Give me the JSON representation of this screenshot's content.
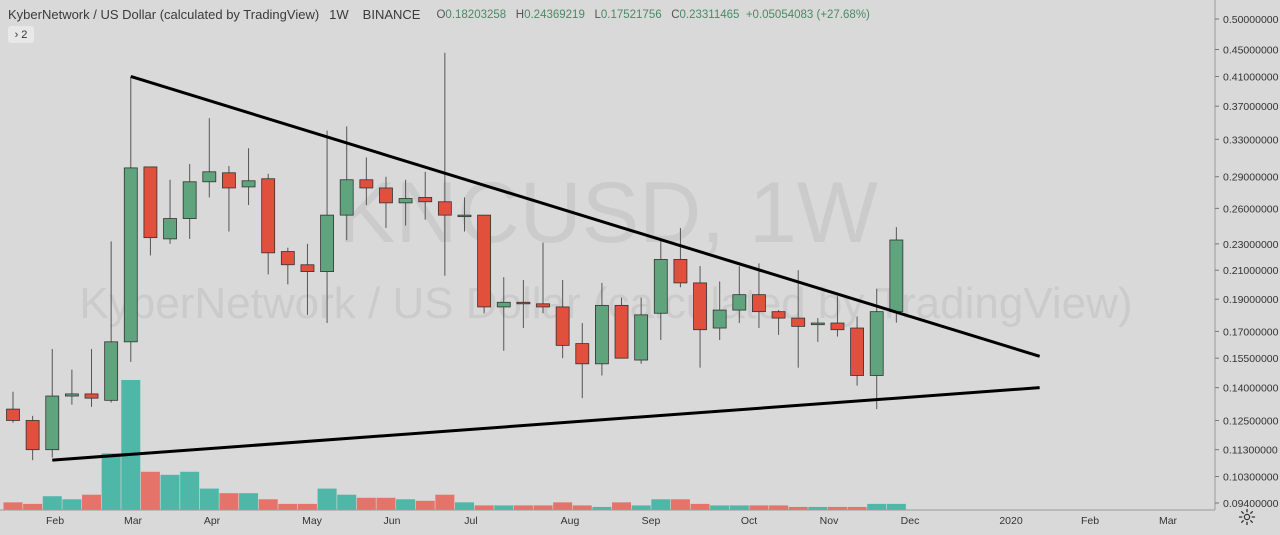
{
  "header": {
    "symbol": "KyberNetwork / US Dollar (calculated by TradingView)",
    "timeframe": "1W",
    "exchange": "BINANCE",
    "o_label": "O",
    "o_value": "0.18203258",
    "h_label": "H",
    "h_value": "0.24369219",
    "l_label": "L",
    "l_value": "0.17521756",
    "c_label": "C",
    "c_value": "0.23311465",
    "change": "+0.05054083 (+27.68%)"
  },
  "study_toggle": {
    "label": "2",
    "icon": "chevron-right-icon"
  },
  "watermark": {
    "line1": "KNCUSD, 1W",
    "line2": "KyberNetwork / US Dollar (calculated by TradingView)"
  },
  "colors": {
    "up": "#5fa47c",
    "down": "#e0503c",
    "vol_up": "#4fb7a8",
    "vol_down": "#e6736a",
    "background": "#d9d9d9",
    "trendline": "#000000"
  },
  "settings_icon": "gear-icon",
  "chart_data": {
    "type": "candlestick",
    "title": "KyberNetwork / US Dollar (calculated by TradingView)",
    "interval": "1W",
    "price_axis": {
      "labels": [
        "0.50000000",
        "0.45000000",
        "0.41000000",
        "0.37000000",
        "0.33000000",
        "0.29000000",
        "0.26000000",
        "0.23000000",
        "0.21000000",
        "0.19000000",
        "0.17000000",
        "0.15500000",
        "0.14000000",
        "0.12500000",
        "0.11300000",
        "0.10300000",
        "0.09400000"
      ],
      "values": [
        0.5,
        0.45,
        0.41,
        0.37,
        0.33,
        0.29,
        0.26,
        0.23,
        0.21,
        0.19,
        0.17,
        0.155,
        0.14,
        0.125,
        0.113,
        0.103,
        0.094
      ],
      "scale": "log",
      "ylim": [
        0.09,
        0.52
      ],
      "position": "right"
    },
    "time_axis": {
      "labels": [
        "Feb",
        "Mar",
        "Apr",
        "May",
        "Jun",
        "Jul",
        "Aug",
        "Sep",
        "Oct",
        "Nov",
        "Dec",
        "2020",
        "Feb",
        "Mar"
      ]
    },
    "candles": [
      {
        "o": 0.13,
        "h": 0.138,
        "l": 0.124,
        "c": 0.125
      },
      {
        "o": 0.125,
        "h": 0.127,
        "l": 0.109,
        "c": 0.113
      },
      {
        "o": 0.113,
        "h": 0.16,
        "l": 0.11,
        "c": 0.136
      },
      {
        "o": 0.136,
        "h": 0.149,
        "l": 0.132,
        "c": 0.137
      },
      {
        "o": 0.137,
        "h": 0.16,
        "l": 0.131,
        "c": 0.135
      },
      {
        "o": 0.134,
        "h": 0.232,
        "l": 0.133,
        "c": 0.164
      },
      {
        "o": 0.164,
        "h": 0.41,
        "l": 0.153,
        "c": 0.299
      },
      {
        "o": 0.3,
        "h": 0.3,
        "l": 0.221,
        "c": 0.235
      },
      {
        "o": 0.234,
        "h": 0.287,
        "l": 0.23,
        "c": 0.251
      },
      {
        "o": 0.251,
        "h": 0.303,
        "l": 0.234,
        "c": 0.285
      },
      {
        "o": 0.285,
        "h": 0.355,
        "l": 0.27,
        "c": 0.295
      },
      {
        "o": 0.294,
        "h": 0.301,
        "l": 0.24,
        "c": 0.279
      },
      {
        "o": 0.28,
        "h": 0.32,
        "l": 0.263,
        "c": 0.286
      },
      {
        "o": 0.288,
        "h": 0.293,
        "l": 0.207,
        "c": 0.223
      },
      {
        "o": 0.224,
        "h": 0.227,
        "l": 0.2,
        "c": 0.214
      },
      {
        "o": 0.214,
        "h": 0.23,
        "l": 0.18,
        "c": 0.209
      },
      {
        "o": 0.209,
        "h": 0.34,
        "l": 0.175,
        "c": 0.254
      },
      {
        "o": 0.254,
        "h": 0.345,
        "l": 0.233,
        "c": 0.287
      },
      {
        "o": 0.287,
        "h": 0.31,
        "l": 0.263,
        "c": 0.279
      },
      {
        "o": 0.279,
        "h": 0.29,
        "l": 0.243,
        "c": 0.265
      },
      {
        "o": 0.265,
        "h": 0.287,
        "l": 0.245,
        "c": 0.269
      },
      {
        "o": 0.27,
        "h": 0.295,
        "l": 0.25,
        "c": 0.266
      },
      {
        "o": 0.266,
        "h": 0.445,
        "l": 0.206,
        "c": 0.254
      },
      {
        "o": 0.253,
        "h": 0.27,
        "l": 0.24,
        "c": 0.254
      },
      {
        "o": 0.254,
        "h": 0.254,
        "l": 0.181,
        "c": 0.185
      },
      {
        "o": 0.185,
        "h": 0.205,
        "l": 0.159,
        "c": 0.188
      },
      {
        "o": 0.188,
        "h": 0.203,
        "l": 0.172,
        "c": 0.187
      },
      {
        "o": 0.187,
        "h": 0.231,
        "l": 0.181,
        "c": 0.185
      },
      {
        "o": 0.185,
        "h": 0.203,
        "l": 0.155,
        "c": 0.162
      },
      {
        "o": 0.163,
        "h": 0.175,
        "l": 0.135,
        "c": 0.152
      },
      {
        "o": 0.152,
        "h": 0.201,
        "l": 0.146,
        "c": 0.186
      },
      {
        "o": 0.186,
        "h": 0.191,
        "l": 0.157,
        "c": 0.155
      },
      {
        "o": 0.154,
        "h": 0.191,
        "l": 0.152,
        "c": 0.18
      },
      {
        "o": 0.181,
        "h": 0.234,
        "l": 0.165,
        "c": 0.218
      },
      {
        "o": 0.218,
        "h": 0.243,
        "l": 0.198,
        "c": 0.201
      },
      {
        "o": 0.201,
        "h": 0.213,
        "l": 0.15,
        "c": 0.171
      },
      {
        "o": 0.172,
        "h": 0.202,
        "l": 0.165,
        "c": 0.183
      },
      {
        "o": 0.183,
        "h": 0.213,
        "l": 0.175,
        "c": 0.193
      },
      {
        "o": 0.193,
        "h": 0.215,
        "l": 0.172,
        "c": 0.182
      },
      {
        "o": 0.182,
        "h": 0.183,
        "l": 0.168,
        "c": 0.178
      },
      {
        "o": 0.178,
        "h": 0.21,
        "l": 0.15,
        "c": 0.173
      },
      {
        "o": 0.174,
        "h": 0.178,
        "l": 0.164,
        "c": 0.175
      },
      {
        "o": 0.175,
        "h": 0.192,
        "l": 0.167,
        "c": 0.171
      },
      {
        "o": 0.172,
        "h": 0.179,
        "l": 0.141,
        "c": 0.146
      },
      {
        "o": 0.146,
        "h": 0.197,
        "l": 0.13,
        "c": 0.182
      },
      {
        "o": 0.182,
        "h": 0.2437,
        "l": 0.1752,
        "c": 0.2331
      }
    ],
    "volume": [
      5,
      4,
      9,
      7,
      10,
      37,
      85,
      25,
      23,
      25,
      14,
      11,
      11,
      7,
      4,
      4,
      14,
      10,
      8,
      8,
      7,
      6,
      10,
      5,
      3,
      3,
      3,
      3,
      5,
      3,
      2,
      5,
      3,
      7,
      7,
      4,
      3,
      3,
      3,
      3,
      2,
      2,
      2,
      2,
      4,
      4
    ],
    "trendlines": [
      {
        "name": "descending-resistance",
        "from": {
          "candle": 6,
          "price": 0.41
        },
        "to": {
          "candle": 52.3,
          "price": 0.156
        }
      },
      {
        "name": "ascending-support",
        "from": {
          "candle": 2,
          "price": 0.109
        },
        "to": {
          "candle": 52.3,
          "price": 0.14
        }
      }
    ],
    "grid": false,
    "legend": "none"
  }
}
